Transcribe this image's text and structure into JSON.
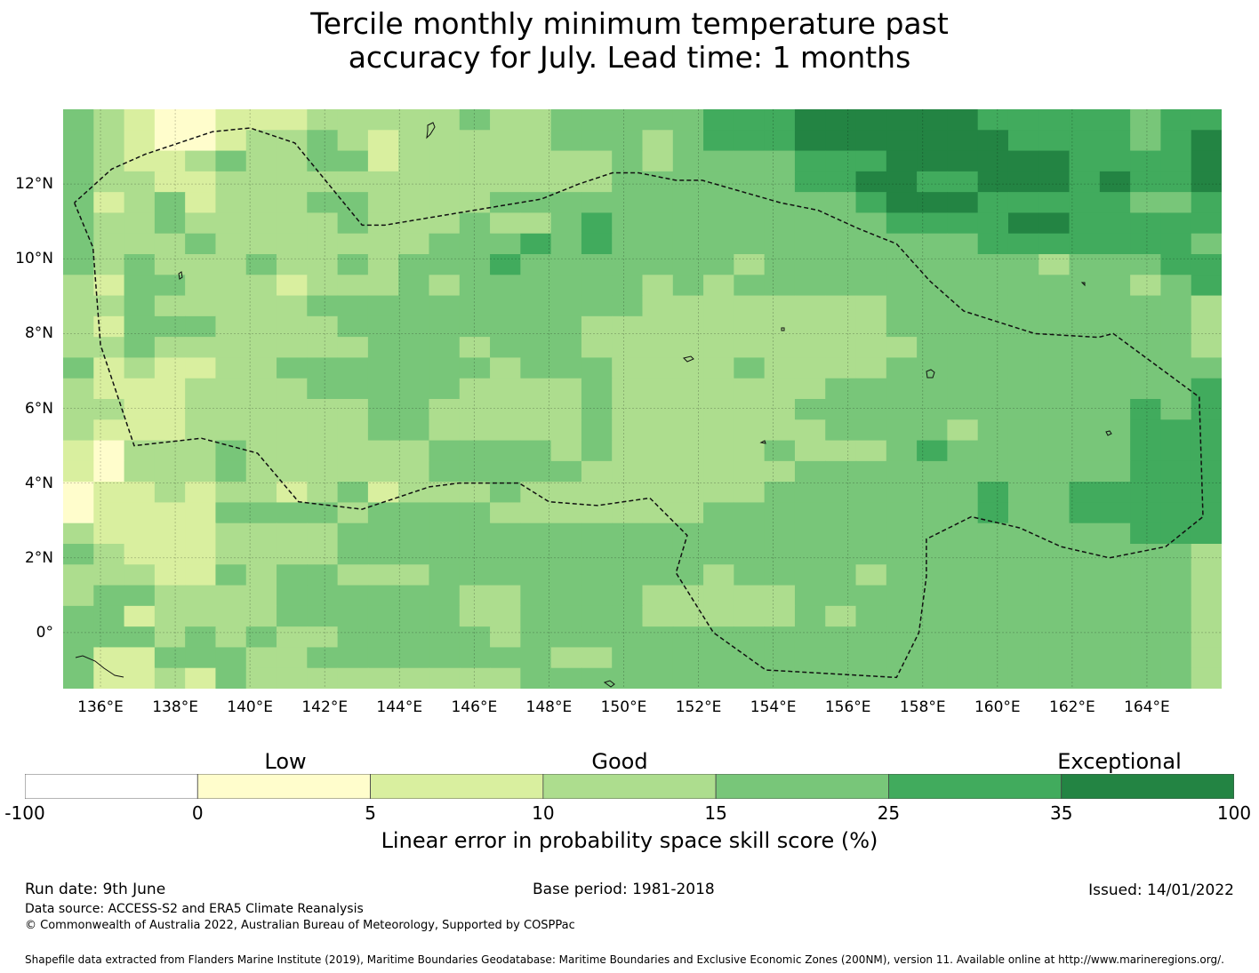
{
  "title_lines": [
    "Tercile monthly minimum temperature past",
    "accuracy for July. Lead time: 1 months"
  ],
  "map": {
    "lon_ticks": [
      "136°E",
      "138°E",
      "140°E",
      "142°E",
      "144°E",
      "146°E",
      "148°E",
      "150°E",
      "152°E",
      "154°E",
      "156°E",
      "158°E",
      "160°E",
      "162°E",
      "164°E"
    ],
    "lat_ticks": [
      "12°N",
      "10°N",
      "8°N",
      "6°N",
      "4°N",
      "2°N",
      "0°"
    ],
    "lon_range": [
      135,
      166
    ],
    "lat_range": [
      -1.5,
      14
    ],
    "bounds_lonlat": [
      [
        135.3,
        11.5
      ],
      [
        135.8,
        10.3
      ],
      [
        136.0,
        7.7
      ],
      [
        136.9,
        5.0
      ],
      [
        138.7,
        5.2
      ],
      [
        140.2,
        4.8
      ],
      [
        141.3,
        3.5
      ],
      [
        143.0,
        3.3
      ],
      [
        144.8,
        3.9
      ],
      [
        145.6,
        4.0
      ],
      [
        146.3,
        4.0
      ],
      [
        147.2,
        4.0
      ],
      [
        148.0,
        3.5
      ],
      [
        149.3,
        3.4
      ],
      [
        150.7,
        3.6
      ],
      [
        151.7,
        2.6
      ],
      [
        151.4,
        1.6
      ],
      [
        152.4,
        0.0
      ],
      [
        153.8,
        -1.0
      ],
      [
        157.3,
        -1.2
      ],
      [
        157.9,
        0.0
      ],
      [
        158.1,
        1.5
      ],
      [
        158.1,
        2.5
      ],
      [
        159.3,
        3.1
      ],
      [
        160.6,
        2.8
      ],
      [
        161.7,
        2.3
      ],
      [
        163.0,
        2.0
      ],
      [
        164.5,
        2.3
      ],
      [
        165.5,
        3.1
      ],
      [
        165.4,
        6.3
      ],
      [
        163.1,
        8.0
      ],
      [
        162.7,
        7.9
      ],
      [
        161.0,
        8.0
      ],
      [
        159.1,
        8.6
      ],
      [
        158.2,
        9.4
      ],
      [
        157.3,
        10.4
      ],
      [
        156.3,
        10.8
      ],
      [
        155.2,
        11.3
      ],
      [
        154.2,
        11.5
      ],
      [
        152.1,
        12.1
      ],
      [
        151.4,
        12.1
      ],
      [
        150.4,
        12.3
      ],
      [
        149.7,
        12.3
      ],
      [
        148.8,
        12.0
      ],
      [
        147.8,
        11.6
      ],
      [
        143.6,
        10.9
      ],
      [
        143.0,
        10.9
      ],
      [
        141.2,
        13.1
      ],
      [
        140.0,
        13.5
      ],
      [
        139.0,
        13.4
      ],
      [
        137.8,
        13.0
      ],
      [
        137.2,
        12.8
      ],
      [
        136.3,
        12.4
      ],
      [
        135.3,
        11.5
      ]
    ],
    "grid_cols": 38,
    "grid_rows": 28,
    "skill_grid": [
      "43211222333334334444455566666655555455",
      "43211233432333334443455566666665555456",
      "43223433442333333343444455566666655556",
      "43322333333333333344444455665566656556",
      "42342333443333444444444444566655555445",
      "43343333343334334544444444455556655555",
      "43334333333344454544444444444455555554",
      "43433343343444544444443444444444344455",
      "32443332333434444443434444444444444345",
      "33433333444444444443333333344444444443",
      "32444333344444444333333333344444444443",
      "33433333334443444333333333334444444443",
      "42322334444444344433334333344444444444",
      "32223333444443333433333334444444444445",
      "33223333334433333433333344444444444545",
      "32223333334433333433333334444344444555",
      "21333433333344443433333433345444444555",
      "21333433333344444333333344444444444555",
      "12232332342333433333333444444454455555",
      "12222444434444333333344444444454455555",
      "32222333344444444444444444444444444555",
      "43222333344444444444444444444444444443",
      "33322434433344444444434444344444444443",
      "34433334444443344443333344444444444443",
      "44233334444443344443333343444444444443",
      "44434343344444344444444444444444444443",
      "42244433444444443344444444444444444443",
      "42232433333333344444444444444444444443"
    ]
  },
  "legend": {
    "categories": [
      "Low",
      "Good",
      "Exceptional"
    ],
    "ticks": [
      "-100",
      "0",
      "5",
      "10",
      "15",
      "25",
      "35",
      "100"
    ],
    "colors": [
      "#ffffff",
      "#fffdcc",
      "#d9ef9f",
      "#addd8e",
      "#78c679",
      "#41ab5d",
      "#238443"
    ],
    "label": "Linear error in probability space skill score (%)"
  },
  "footer": {
    "run_date": "Run date: 9th June",
    "base_period": "Base period: 1981-2018",
    "issued": "Issued: 14/01/2022",
    "data_source": "Data source: ACCESS-S2 and ERA5 Climate Reanalysis",
    "copyright": "© Commonwealth of Australia 2022, Australian Bureau of Meteorology, Supported by COSPPac",
    "shapefile": "Shapefile data extracted from Flanders Marine Institute (2019), Maritime Boundaries Geodatabase: Maritime Boundaries and Exclusive Economic Zones (200NM), version 11. Available online at http://www.marineregions.org/."
  }
}
